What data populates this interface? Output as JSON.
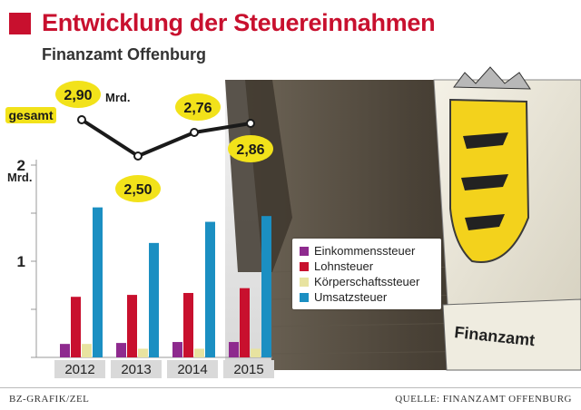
{
  "title": "Entwicklung der Steuereinnahmen",
  "subtitle": "Finanzamt Offenburg",
  "sign_text": "Finanzamt",
  "footer": {
    "credit": "BZ-GRAFIK/ZEL",
    "source": "QUELLE: FINANZAMT OFFENBURG"
  },
  "colors": {
    "title": "#c8102e",
    "total_bubble": "#f2e21a"
  },
  "chart_data": [
    {
      "type": "line",
      "series_label": "gesamt",
      "unit_label": "Mrd.",
      "x": [
        "2012",
        "2013",
        "2014",
        "2015"
      ],
      "values": [
        2.9,
        2.5,
        2.76,
        2.86
      ],
      "value_labels": [
        "2,90",
        "2,50",
        "2,76",
        "2,86"
      ]
    },
    {
      "type": "bar",
      "categories": [
        "2012",
        "2013",
        "2014",
        "2015"
      ],
      "ylabel": "Mrd.",
      "ylim": [
        0,
        2
      ],
      "yticks": [
        0,
        0.5,
        1,
        1.5,
        2
      ],
      "ytick_labels": [
        "",
        "",
        "1",
        "",
        "2"
      ],
      "legend_position": "right",
      "series": [
        {
          "name": "Einkommenssteuer",
          "color": "#8e2a8e",
          "values": [
            0.14,
            0.15,
            0.16,
            0.16
          ]
        },
        {
          "name": "Lohnsteuer",
          "color": "#c8102e",
          "values": [
            0.63,
            0.65,
            0.67,
            0.72
          ]
        },
        {
          "name": "Körperschaftssteuer",
          "color": "#e8e3a0",
          "values": [
            0.14,
            0.09,
            0.09,
            0.09
          ]
        },
        {
          "name": "Umsatzsteuer",
          "color": "#1b8fc2",
          "values": [
            1.56,
            1.19,
            1.41,
            1.47
          ]
        }
      ]
    }
  ]
}
